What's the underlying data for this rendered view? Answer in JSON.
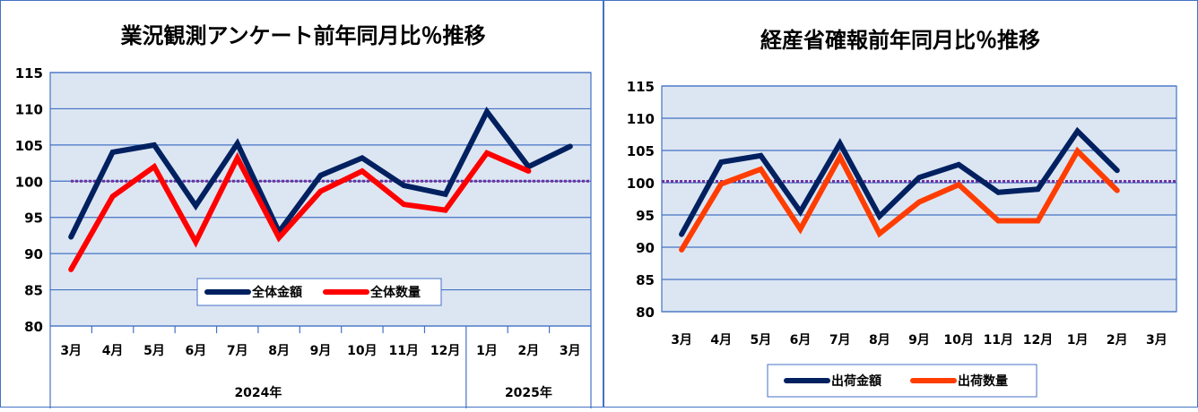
{
  "colors": {
    "plot_bg": "#dce6f2",
    "grid": "#4472c4",
    "navy": "#002060",
    "red": "#ff0000",
    "orange": "#ff3d00",
    "ref_line": "#7030a0"
  },
  "chart_data": [
    {
      "type": "line",
      "title": "業況観測アンケート前年同月比％推移",
      "categories": [
        "3月",
        "4月",
        "5月",
        "6月",
        "7月",
        "8月",
        "9月",
        "10月",
        "11月",
        "12月",
        "1月",
        "2月",
        "3月"
      ],
      "year_groups": [
        {
          "label": "2024年",
          "count": 10
        },
        {
          "label": "2025年",
          "count": 3
        }
      ],
      "ylim": [
        80,
        115
      ],
      "yticks": [
        80,
        85,
        90,
        95,
        100,
        105,
        110,
        115
      ],
      "reference_value": 100,
      "grid": true,
      "legend_position": "bottom-center",
      "series": [
        {
          "name": "全体金額",
          "color": "#002060",
          "values": [
            92.3,
            104.0,
            105.0,
            96.6,
            105.2,
            93.0,
            100.8,
            103.2,
            99.4,
            98.2,
            109.6,
            102.0,
            104.8
          ]
        },
        {
          "name": "全体数量",
          "color": "#ff0000",
          "values": [
            87.8,
            97.9,
            102.0,
            91.6,
            103.2,
            92.2,
            98.6,
            101.4,
            96.8,
            96.0,
            103.9,
            101.4,
            null
          ]
        }
      ]
    },
    {
      "type": "line",
      "title": "経産省確報前年同月比％推移",
      "categories": [
        "3月",
        "4月",
        "5月",
        "6月",
        "7月",
        "8月",
        "9月",
        "10月",
        "11月",
        "12月",
        "1月",
        "2月",
        "3月"
      ],
      "ylim": [
        80,
        115
      ],
      "yticks": [
        80,
        85,
        90,
        95,
        100,
        105,
        110,
        115
      ],
      "reference_value": 100.2,
      "grid": true,
      "legend_position": "bottom-center",
      "series": [
        {
          "name": "出荷金額",
          "color": "#002060",
          "values": [
            92.0,
            103.2,
            104.2,
            95.5,
            106.1,
            94.8,
            100.8,
            102.8,
            98.5,
            99.0,
            108.0,
            101.9,
            null
          ]
        },
        {
          "name": "出荷数量",
          "color": "#ff3d00",
          "values": [
            89.6,
            99.8,
            102.1,
            92.8,
            104.0,
            92.1,
            97.0,
            99.7,
            94.1,
            94.1,
            104.9,
            98.8,
            null
          ]
        }
      ]
    }
  ]
}
